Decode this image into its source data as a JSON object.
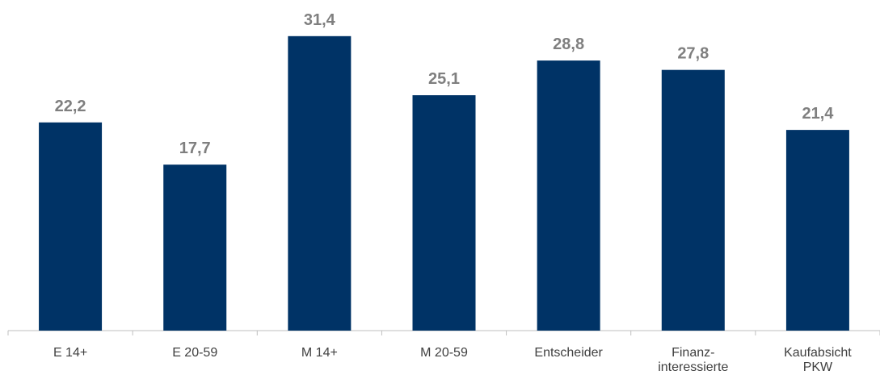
{
  "chart_data": {
    "type": "bar",
    "categories": [
      [
        "E 14+"
      ],
      [
        "E 20-59"
      ],
      [
        "M 14+"
      ],
      [
        "M 20-59"
      ],
      [
        "Entscheider"
      ],
      [
        "Finanz-",
        "interessierte"
      ],
      [
        "Kaufabsicht",
        "PKW"
      ]
    ],
    "values": [
      22.2,
      17.7,
      31.4,
      25.1,
      28.8,
      27.8,
      21.4
    ],
    "value_labels": [
      "22,2",
      "17,7",
      "31,4",
      "25,1",
      "28,8",
      "27,8",
      "21,4"
    ],
    "ylim": [
      0,
      34
    ],
    "grid": false,
    "colors": {
      "bar": "#003366",
      "value_label": "#7f7f7f",
      "category_label": "#404040",
      "axis": "#bfbfbf"
    }
  }
}
